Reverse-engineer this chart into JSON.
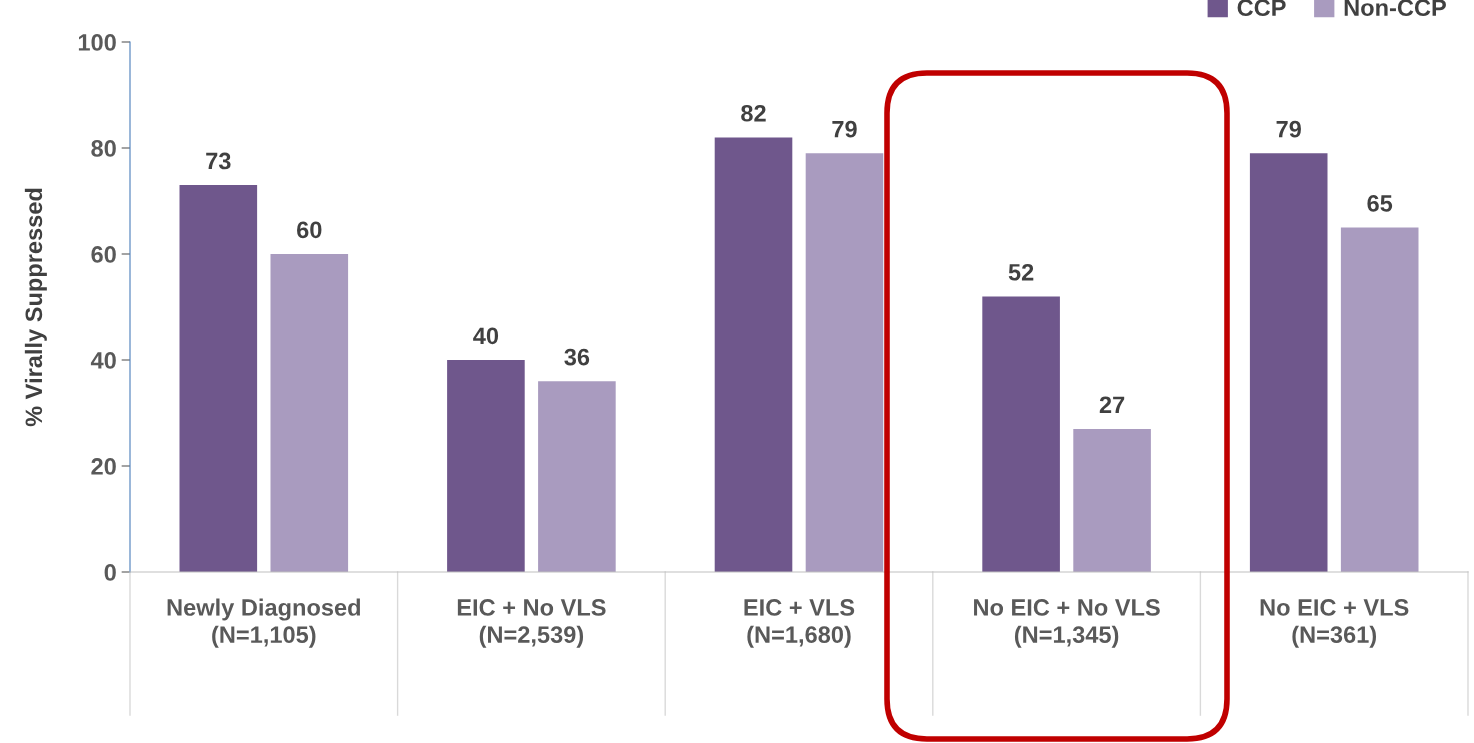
{
  "chart_data": {
    "type": "bar",
    "ylabel": "% Virally Suppressed",
    "categories": [
      "Newly Diagnosed\n(N=1,105)",
      "EIC + No VLS\n(N=2,539)",
      "EIC + VLS\n(N=1,680)",
      "No EIC + No VLS\n(N=1,345)",
      "No EIC + VLS\n(N=361)"
    ],
    "series": [
      {
        "name": "CCP",
        "color": "#6f578c",
        "values": [
          73,
          40,
          82,
          52,
          79
        ]
      },
      {
        "name": "Non-CCP",
        "color": "#a99bbf",
        "values": [
          60,
          36,
          79,
          27,
          65
        ]
      }
    ],
    "ylim": [
      0,
      100
    ],
    "yticks": [
      0,
      20,
      40,
      60,
      80,
      100
    ],
    "grid": false,
    "legend": "top right",
    "data_labels": true
  }
}
